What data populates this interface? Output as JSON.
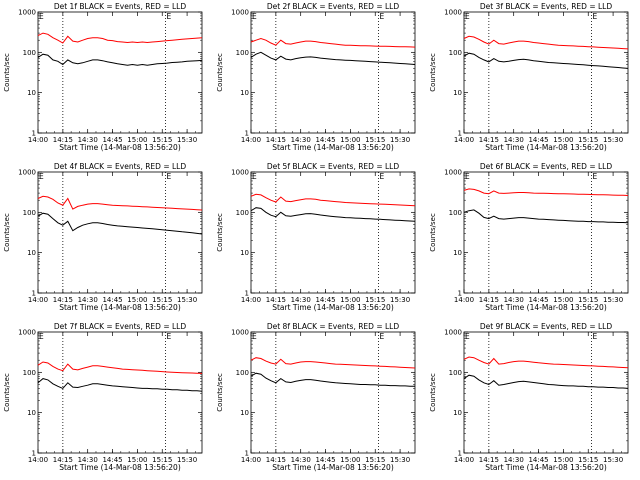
{
  "chart_data": [
    {
      "type": "line",
      "title": "Det 1f BLACK = Events, RED = LLD",
      "xlabel": "Start Time (14-Mar-08 13:56:20)",
      "ylabel": "Counts/sec",
      "yscale": "log",
      "ylim": [
        1,
        1000
      ],
      "xlim": [
        "14:00",
        "15:39"
      ],
      "x_ticks": [
        "14:00",
        "14:15",
        "14:30",
        "14:45",
        "15:00",
        "15:15",
        "15:30"
      ],
      "y_ticks": [
        "1",
        "10",
        "100",
        "1000"
      ],
      "markers": [
        {
          "label": "E",
          "x": "14:00"
        },
        {
          "label": "E",
          "x": "15:17"
        }
      ],
      "dotted_lines": [
        "14:15",
        "15:17"
      ],
      "series": [
        {
          "color": "#ff0000",
          "start": "14:00",
          "step_min": 3,
          "values": [
            260,
            300,
            280,
            230,
            200,
            170,
            250,
            190,
            180,
            200,
            220,
            230,
            230,
            220,
            200,
            195,
            185,
            180,
            175,
            180,
            175,
            180,
            175,
            180,
            185,
            190,
            195,
            200,
            205,
            210,
            215,
            220,
            225,
            230
          ]
        },
        {
          "color": "#000000",
          "start": "14:00",
          "step_min": 3,
          "values": [
            75,
            90,
            85,
            65,
            60,
            50,
            65,
            55,
            52,
            55,
            60,
            65,
            65,
            62,
            58,
            55,
            52,
            50,
            48,
            50,
            48,
            50,
            48,
            50,
            52,
            53,
            54,
            56,
            57,
            58,
            60,
            61,
            62,
            63
          ]
        }
      ]
    },
    {
      "type": "line",
      "title": "Det 2f BLACK = Events, RED = LLD",
      "xlabel": "Start Time (14-Mar-08 13:56:20)",
      "ylabel": "Counts/sec",
      "yscale": "log",
      "ylim": [
        1,
        1000
      ],
      "xlim": [
        "14:00",
        "15:39"
      ],
      "x_ticks": [
        "14:00",
        "14:15",
        "14:30",
        "14:45",
        "15:00",
        "15:15",
        "15:30"
      ],
      "y_ticks": [
        "1",
        "10",
        "100",
        "1000"
      ],
      "markers": [
        {
          "label": "E",
          "x": "14:00"
        },
        {
          "label": "E",
          "x": "15:17"
        }
      ],
      "dotted_lines": [
        "14:15",
        "15:17"
      ],
      "series": [
        {
          "color": "#ff0000",
          "start": "14:00",
          "step_min": 3,
          "values": [
            180,
            200,
            220,
            200,
            170,
            150,
            200,
            165,
            160,
            170,
            180,
            190,
            190,
            185,
            175,
            170,
            165,
            160,
            155,
            150,
            150,
            148,
            146,
            145,
            144,
            143,
            142,
            141,
            140,
            139,
            138,
            137,
            136,
            135
          ]
        },
        {
          "color": "#000000",
          "start": "14:00",
          "step_min": 3,
          "values": [
            75,
            90,
            100,
            85,
            72,
            65,
            80,
            68,
            65,
            70,
            73,
            76,
            77,
            75,
            72,
            70,
            68,
            66,
            65,
            64,
            63,
            62,
            61,
            60,
            59,
            58,
            57,
            56,
            55,
            54,
            53,
            52,
            51,
            50
          ]
        }
      ]
    },
    {
      "type": "line",
      "title": "Det 3f BLACK = Events, RED = LLD",
      "xlabel": "Start Time (14-Mar-08 13:56:20)",
      "ylabel": "Counts/sec",
      "yscale": "log",
      "ylim": [
        1,
        1000
      ],
      "xlim": [
        "14:00",
        "15:39"
      ],
      "x_ticks": [
        "14:00",
        "14:15",
        "14:30",
        "14:45",
        "15:00",
        "15:15",
        "15:30"
      ],
      "y_ticks": [
        "1",
        "10",
        "100",
        "1000"
      ],
      "markers": [
        {
          "label": "E",
          "x": "14:00"
        },
        {
          "label": "E",
          "x": "15:17"
        }
      ],
      "dotted_lines": [
        "14:15",
        "15:17"
      ],
      "series": [
        {
          "color": "#ff0000",
          "start": "14:00",
          "step_min": 3,
          "values": [
            220,
            250,
            240,
            210,
            180,
            160,
            200,
            165,
            160,
            170,
            180,
            190,
            190,
            185,
            175,
            170,
            165,
            160,
            155,
            150,
            148,
            146,
            144,
            142,
            140,
            138,
            136,
            134,
            132,
            130,
            128,
            126,
            124,
            122
          ]
        },
        {
          "color": "#000000",
          "start": "14:00",
          "step_min": 3,
          "values": [
            80,
            95,
            90,
            75,
            65,
            58,
            70,
            60,
            58,
            60,
            63,
            66,
            67,
            65,
            62,
            60,
            58,
            56,
            55,
            54,
            53,
            52,
            51,
            50,
            49,
            48,
            47,
            46,
            45,
            44,
            43,
            42,
            41,
            40
          ]
        }
      ]
    },
    {
      "type": "line",
      "title": "Det 4f BLACK = Events, RED = LLD",
      "xlabel": "Start Time (14-Mar-08 13:56:20)",
      "ylabel": "Counts/sec",
      "yscale": "log",
      "ylim": [
        1,
        1000
      ],
      "xlim": [
        "14:00",
        "15:39"
      ],
      "x_ticks": [
        "14:00",
        "14:15",
        "14:30",
        "14:45",
        "15:00",
        "15:15",
        "15:30"
      ],
      "y_ticks": [
        "1",
        "10",
        "100",
        "1000"
      ],
      "markers": [
        {
          "label": "E",
          "x": "14:00"
        },
        {
          "label": "E",
          "x": "15:17"
        }
      ],
      "dotted_lines": [
        "14:15",
        "15:17"
      ],
      "series": [
        {
          "color": "#ff0000",
          "start": "14:00",
          "step_min": 3,
          "values": [
            220,
            250,
            240,
            210,
            170,
            150,
            220,
            120,
            140,
            150,
            160,
            165,
            165,
            160,
            155,
            150,
            148,
            146,
            144,
            142,
            140,
            138,
            136,
            134,
            132,
            130,
            128,
            126,
            124,
            122,
            120,
            118,
            116,
            114
          ]
        },
        {
          "color": "#000000",
          "start": "14:00",
          "step_min": 3,
          "values": [
            80,
            95,
            90,
            70,
            55,
            48,
            60,
            35,
            42,
            48,
            52,
            55,
            55,
            53,
            50,
            48,
            46,
            45,
            44,
            43,
            42,
            41,
            40,
            39,
            38,
            37,
            36,
            35,
            34,
            33,
            32,
            31,
            30,
            29
          ]
        }
      ]
    },
    {
      "type": "line",
      "title": "Det 5f BLACK = Events, RED = LLD",
      "xlabel": "Start Time (14-Mar-08 13:56:20)",
      "ylabel": "Counts/sec",
      "yscale": "log",
      "ylim": [
        1,
        1000
      ],
      "xlim": [
        "14:00",
        "15:39"
      ],
      "x_ticks": [
        "14:00",
        "14:15",
        "14:30",
        "14:45",
        "15:00",
        "15:15",
        "15:30"
      ],
      "y_ticks": [
        "1",
        "10",
        "100",
        "1000"
      ],
      "markers": [
        {
          "label": "E",
          "x": "14:00"
        },
        {
          "label": "E",
          "x": "15:17"
        }
      ],
      "dotted_lines": [
        "14:15",
        "15:17"
      ],
      "series": [
        {
          "color": "#ff0000",
          "start": "14:00",
          "step_min": 3,
          "values": [
            250,
            280,
            270,
            230,
            200,
            180,
            240,
            190,
            185,
            195,
            205,
            215,
            215,
            210,
            200,
            195,
            190,
            185,
            180,
            175,
            172,
            170,
            168,
            166,
            164,
            162,
            160,
            158,
            156,
            154,
            152,
            150,
            148,
            146
          ]
        },
        {
          "color": "#000000",
          "start": "14:00",
          "step_min": 3,
          "values": [
            110,
            130,
            125,
            100,
            85,
            78,
            100,
            82,
            80,
            84,
            88,
            92,
            93,
            90,
            86,
            83,
            80,
            78,
            76,
            74,
            73,
            72,
            71,
            70,
            69,
            68,
            67,
            66,
            65,
            64,
            63,
            62,
            61,
            60
          ]
        }
      ]
    },
    {
      "type": "line",
      "title": "Det 6f BLACK = Events, RED = LLD",
      "xlabel": "Start Time (14-Mar-08 13:56:20)",
      "ylabel": "Counts/sec",
      "yscale": "log",
      "ylim": [
        1,
        1000
      ],
      "xlim": [
        "14:00",
        "15:39"
      ],
      "x_ticks": [
        "14:00",
        "14:15",
        "14:30",
        "14:45",
        "15:00",
        "15:15",
        "15:30"
      ],
      "y_ticks": [
        "1",
        "10",
        "100",
        "1000"
      ],
      "markers": [
        {
          "label": "E",
          "x": "14:00"
        },
        {
          "label": "E",
          "x": "15:17"
        }
      ],
      "dotted_lines": [
        "14:15",
        "15:17"
      ],
      "series": [
        {
          "color": "#ff0000",
          "start": "14:00",
          "step_min": 3,
          "values": [
            350,
            380,
            370,
            340,
            300,
            290,
            340,
            300,
            295,
            300,
            305,
            310,
            310,
            305,
            300,
            298,
            296,
            294,
            292,
            290,
            288,
            286,
            284,
            282,
            280,
            278,
            276,
            274,
            272,
            270,
            268,
            266,
            264,
            262
          ]
        },
        {
          "color": "#000000",
          "start": "14:00",
          "step_min": 3,
          "values": [
            100,
            110,
            115,
            95,
            75,
            70,
            80,
            70,
            68,
            70,
            72,
            74,
            74,
            72,
            70,
            68,
            67,
            66,
            65,
            64,
            63,
            62,
            61,
            60,
            60,
            59,
            59,
            58,
            58,
            57,
            57,
            56,
            56,
            55
          ]
        }
      ]
    },
    {
      "type": "line",
      "title": "Det 7f BLACK = Events, RED = LLD",
      "xlabel": "Start Time (14-Mar-08 13:56:20)",
      "ylabel": "Counts/sec",
      "yscale": "log",
      "ylim": [
        1,
        1000
      ],
      "xlim": [
        "14:00",
        "15:39"
      ],
      "x_ticks": [
        "14:00",
        "14:15",
        "14:30",
        "14:45",
        "15:00",
        "15:15",
        "15:30"
      ],
      "y_ticks": [
        "1",
        "10",
        "100",
        "1000"
      ],
      "markers": [
        {
          "label": "E",
          "x": "14:00"
        },
        {
          "label": "E",
          "x": "15:17"
        }
      ],
      "dotted_lines": [
        "14:15",
        "15:17"
      ],
      "series": [
        {
          "color": "#ff0000",
          "start": "14:00",
          "step_min": 3,
          "values": [
            150,
            180,
            170,
            140,
            120,
            110,
            160,
            120,
            115,
            125,
            135,
            145,
            145,
            140,
            135,
            130,
            125,
            120,
            118,
            116,
            114,
            112,
            110,
            108,
            106,
            104,
            102,
            100,
            99,
            98,
            97,
            96,
            95,
            94
          ]
        },
        {
          "color": "#000000",
          "start": "14:00",
          "step_min": 3,
          "values": [
            55,
            70,
            65,
            52,
            45,
            40,
            55,
            43,
            42,
            45,
            48,
            52,
            52,
            50,
            48,
            46,
            45,
            44,
            43,
            42,
            41,
            40,
            40,
            39,
            39,
            38,
            38,
            37,
            37,
            36,
            36,
            35,
            35,
            34
          ]
        }
      ]
    },
    {
      "type": "line",
      "title": "Det 8f BLACK = Events, RED = LLD",
      "xlabel": "Start Time (14-Mar-08 13:56:20)",
      "ylabel": "Counts/sec",
      "yscale": "log",
      "ylim": [
        1,
        1000
      ],
      "xlim": [
        "14:00",
        "15:39"
      ],
      "x_ticks": [
        "14:00",
        "14:15",
        "14:30",
        "14:45",
        "15:00",
        "15:15",
        "15:30"
      ],
      "y_ticks": [
        "1",
        "10",
        "100",
        "1000"
      ],
      "markers": [
        {
          "label": "E",
          "x": "14:00"
        },
        {
          "label": "E",
          "x": "15:17"
        }
      ],
      "dotted_lines": [
        "14:15",
        "15:17"
      ],
      "series": [
        {
          "color": "#ff0000",
          "start": "14:00",
          "step_min": 3,
          "values": [
            200,
            230,
            220,
            190,
            170,
            160,
            210,
            165,
            160,
            170,
            180,
            185,
            185,
            180,
            175,
            170,
            165,
            160,
            158,
            156,
            154,
            152,
            150,
            148,
            146,
            144,
            142,
            140,
            138,
            136,
            134,
            132,
            130,
            128
          ]
        },
        {
          "color": "#000000",
          "start": "14:00",
          "step_min": 3,
          "values": [
            80,
            95,
            90,
            72,
            62,
            55,
            70,
            58,
            56,
            60,
            63,
            66,
            66,
            64,
            61,
            59,
            57,
            55,
            54,
            53,
            52,
            51,
            50,
            50,
            49,
            49,
            48,
            48,
            47,
            47,
            46,
            46,
            45,
            45
          ]
        }
      ]
    },
    {
      "type": "line",
      "title": "Det 9f BLACK = Events, RED = LLD",
      "xlabel": "Start Time (14-Mar-08 13:56:20)",
      "ylabel": "Counts/sec",
      "yscale": "log",
      "ylim": [
        1,
        1000
      ],
      "xlim": [
        "14:00",
        "15:39"
      ],
      "x_ticks": [
        "14:00",
        "14:15",
        "14:30",
        "14:45",
        "15:00",
        "15:15",
        "15:30"
      ],
      "y_ticks": [
        "1",
        "10",
        "100",
        "1000"
      ],
      "markers": [
        {
          "label": "E",
          "x": "14:00"
        },
        {
          "label": "E",
          "x": "15:17"
        }
      ],
      "dotted_lines": [
        "14:15",
        "15:17"
      ],
      "series": [
        {
          "color": "#ff0000",
          "start": "14:00",
          "step_min": 3,
          "values": [
            210,
            240,
            230,
            200,
            175,
            160,
            220,
            160,
            165,
            175,
            185,
            190,
            190,
            185,
            178,
            172,
            168,
            164,
            160,
            158,
            156,
            154,
            152,
            150,
            148,
            146,
            144,
            142,
            140,
            138,
            136,
            134,
            132,
            130
          ]
        },
        {
          "color": "#000000",
          "start": "14:00",
          "step_min": 3,
          "values": [
            70,
            85,
            80,
            65,
            55,
            50,
            62,
            48,
            50,
            53,
            56,
            59,
            60,
            58,
            56,
            54,
            52,
            50,
            49,
            48,
            47,
            46,
            46,
            45,
            45,
            44,
            44,
            43,
            43,
            42,
            42,
            41,
            41,
            40
          ]
        }
      ]
    }
  ]
}
